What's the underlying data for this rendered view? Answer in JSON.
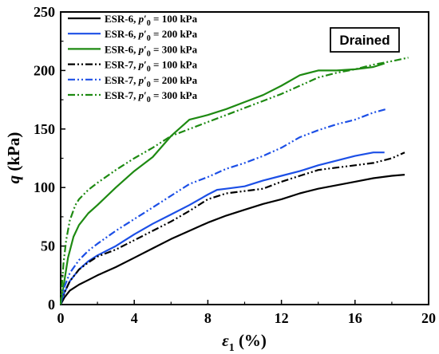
{
  "chart_data": {
    "type": "line",
    "xlabel_symbol": "ε",
    "xlabel_sub": "1",
    "xlabel_unit": " (%)",
    "ylabel_symbol": "q",
    "ylabel_unit": " (kPa)",
    "xlim": [
      0,
      20
    ],
    "ylim": [
      0,
      250
    ],
    "xticks": [
      0,
      4,
      8,
      12,
      16,
      20
    ],
    "yticks": [
      0,
      50,
      100,
      150,
      200,
      250
    ],
    "grid": false,
    "legend_position": "top-left",
    "annotation": "Drained",
    "series": [
      {
        "name_prefix": "ESR-6, ",
        "name_var": "p",
        "name_sub": "0",
        "name_value": " = 100 kPa",
        "color": "#000000",
        "dash": "solid",
        "x": [
          0,
          0.2,
          0.5,
          1,
          1.5,
          2,
          3,
          4,
          5,
          6,
          7,
          8,
          9,
          10,
          11,
          12,
          13,
          14,
          15,
          16,
          17,
          18,
          18.7
        ],
        "y": [
          0,
          6,
          12,
          17,
          21,
          25,
          32,
          40,
          48,
          56,
          63,
          70,
          76,
          81,
          86,
          90,
          95,
          99,
          102,
          105,
          108,
          110,
          111
        ]
      },
      {
        "name_prefix": "ESR-6, ",
        "name_var": "p",
        "name_sub": "0",
        "name_value": " = 200 kPa",
        "color": "#1c4fe6",
        "dash": "solid",
        "x": [
          0,
          0.2,
          0.5,
          1,
          1.5,
          2,
          3,
          4,
          5,
          6,
          7,
          8,
          8.5,
          9,
          10,
          11,
          12,
          13,
          14,
          15,
          16,
          17,
          17.6
        ],
        "y": [
          0,
          10,
          20,
          30,
          37,
          42,
          50,
          60,
          69,
          77,
          85,
          94,
          98,
          99,
          101,
          106,
          110,
          114,
          119,
          123,
          127,
          130,
          130
        ]
      },
      {
        "name_prefix": "ESR-6, ",
        "name_var": "p",
        "name_sub": "0",
        "name_value": " = 300 kPa",
        "color": "#1e8a12",
        "dash": "solid",
        "x": [
          0,
          0.2,
          0.4,
          0.7,
          1,
          1.5,
          2,
          3,
          4,
          5,
          6,
          7,
          8,
          9,
          10,
          11,
          12,
          13,
          14,
          15,
          16,
          17,
          17.6
        ],
        "y": [
          0,
          20,
          40,
          58,
          68,
          78,
          85,
          100,
          114,
          126,
          144,
          158,
          162,
          167,
          173,
          179,
          187,
          196,
          200,
          200,
          201,
          203,
          206
        ]
      },
      {
        "name_prefix": "ESR-7, ",
        "name_var": "p",
        "name_sub": "0",
        "name_value": " = 100 kPa",
        "color": "#000000",
        "dash": "dashdotdot",
        "x": [
          0,
          0.2,
          0.5,
          1,
          1.5,
          2,
          3,
          4,
          5,
          6,
          7,
          8,
          9,
          10,
          11,
          12,
          13,
          14,
          15,
          16,
          17,
          18,
          18.7
        ],
        "y": [
          0,
          10,
          20,
          30,
          36,
          41,
          47,
          55,
          63,
          71,
          80,
          90,
          95,
          97,
          99,
          105,
          110,
          115,
          117,
          119,
          121,
          125,
          130
        ]
      },
      {
        "name_prefix": "ESR-7, ",
        "name_var": "p",
        "name_sub": "0",
        "name_value": " = 200 kPa",
        "color": "#1c4fe6",
        "dash": "dashdotdot",
        "x": [
          0,
          0.2,
          0.5,
          1,
          1.5,
          2,
          3,
          4,
          5,
          6,
          7,
          8,
          9,
          10,
          11,
          12,
          13,
          14,
          15,
          16,
          17,
          17.7
        ],
        "y": [
          0,
          15,
          27,
          38,
          46,
          52,
          63,
          73,
          83,
          93,
          103,
          109,
          116,
          121,
          127,
          134,
          143,
          149,
          154,
          158,
          164,
          167
        ]
      },
      {
        "name_prefix": "ESR-7, ",
        "name_var": "p",
        "name_sub": "0",
        "name_value": " = 300 kPa",
        "color": "#1e8a12",
        "dash": "dashdotdot",
        "x": [
          0,
          0.15,
          0.3,
          0.5,
          0.8,
          1,
          1.5,
          2,
          3,
          4,
          5,
          6,
          7,
          8,
          9,
          10,
          11,
          12,
          13,
          14,
          15,
          16,
          17,
          18,
          18.9
        ],
        "y": [
          0,
          35,
          55,
          72,
          85,
          90,
          98,
          104,
          115,
          125,
          134,
          144,
          150,
          156,
          162,
          168,
          174,
          180,
          187,
          194,
          198,
          201,
          205,
          208,
          211
        ]
      }
    ]
  }
}
